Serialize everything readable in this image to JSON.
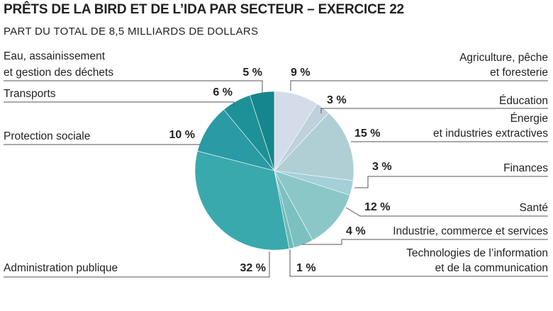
{
  "chart_data": {
    "type": "pie",
    "title": "PRÊTS DE LA BIRD ET DE L’IDA PAR SECTEUR – EXERCICE 22",
    "subtitle": "PART DU TOTAL DE 8,5 MILLIARDS DE DOLLARS",
    "unit": "%",
    "slices": [
      {
        "label_lines": [
          "Agriculture, pêche",
          "et foresterie"
        ],
        "value": 9,
        "value_label": "9 %",
        "color": "#d3dce8",
        "side": "right"
      },
      {
        "label_lines": [
          "Éducation"
        ],
        "value": 3,
        "value_label": "3 %",
        "color": "#c0d0dc",
        "side": "right"
      },
      {
        "label_lines": [
          "Énergie",
          "et industries extractives"
        ],
        "value": 15,
        "value_label": "15 %",
        "color": "#b0cfd5",
        "side": "right"
      },
      {
        "label_lines": [
          "Finances"
        ],
        "value": 3,
        "value_label": "3 %",
        "color": "#a3d0d9",
        "side": "right"
      },
      {
        "label_lines": [
          "Santé"
        ],
        "value": 12,
        "value_label": "12 %",
        "color": "#8cc7c8",
        "side": "right"
      },
      {
        "label_lines": [
          "Industrie, commerce et services"
        ],
        "value": 4,
        "value_label": "4 %",
        "color": "#7cc0c1",
        "side": "right"
      },
      {
        "label_lines": [
          "Technologies de l’information",
          "et de la communication"
        ],
        "value": 1,
        "value_label": "1 %",
        "color": "#6db9bb",
        "side": "right"
      },
      {
        "label_lines": [
          "Administration publique"
        ],
        "value": 32,
        "value_label": "32 %",
        "color": "#3aa9ae",
        "side": "left"
      },
      {
        "label_lines": [
          "Protection sociale"
        ],
        "value": 10,
        "value_label": "10 %",
        "color": "#2a9aa5",
        "side": "left"
      },
      {
        "label_lines": [
          "Transports"
        ],
        "value": 6,
        "value_label": "6 %",
        "color": "#1e9198",
        "side": "left"
      },
      {
        "label_lines": [
          "Eau, assainissement",
          "et gestion des déchets"
        ],
        "value": 5,
        "value_label": "5 %",
        "color": "#15868b",
        "side": "left"
      }
    ]
  }
}
